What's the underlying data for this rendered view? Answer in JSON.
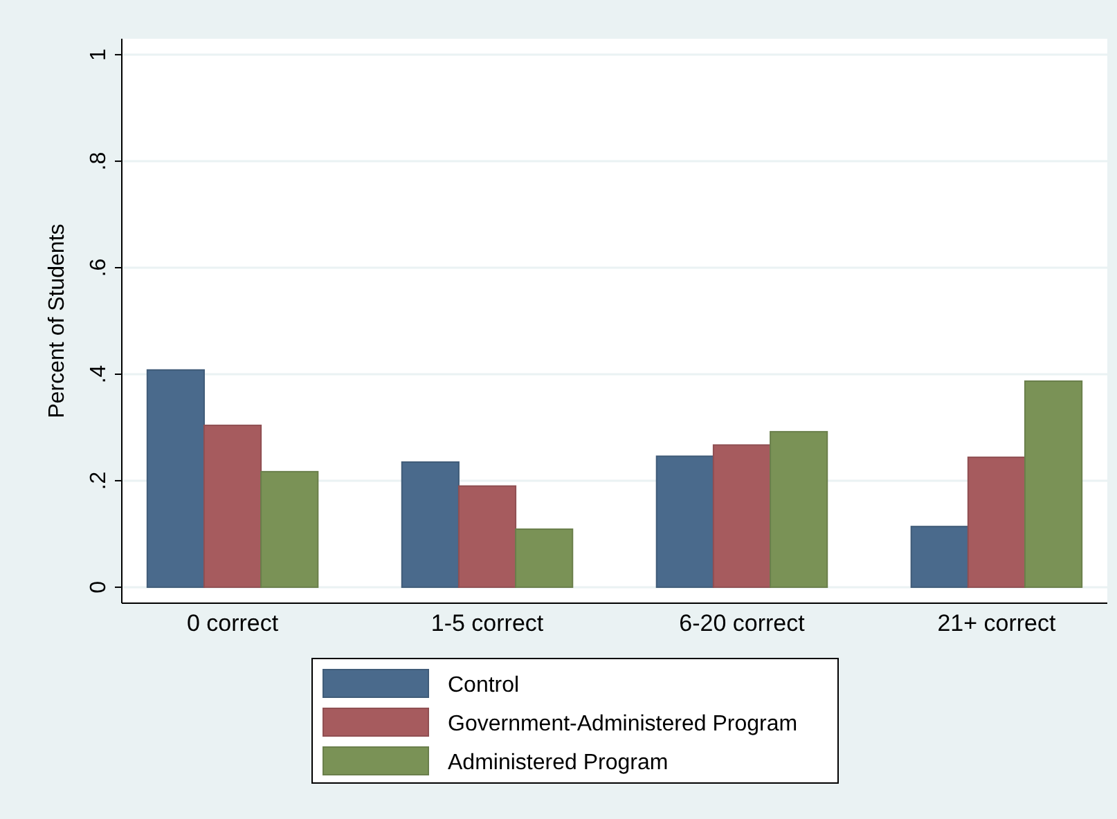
{
  "chart_data": {
    "type": "bar",
    "ylabel": "Percent of Students",
    "categories": [
      "0 correct",
      "1-5 correct",
      "6-20 correct",
      "21+ correct"
    ],
    "series": [
      {
        "name": "Control",
        "color": "#4a6a8c",
        "values": [
          0.408,
          0.235,
          0.246,
          0.114
        ]
      },
      {
        "name": "Government-Administered Program",
        "color": "#a65b5e",
        "values": [
          0.304,
          0.19,
          0.267,
          0.244
        ]
      },
      {
        "name": "Administered Program",
        "color": "#7a9256",
        "values": [
          0.217,
          0.109,
          0.292,
          0.387
        ]
      }
    ],
    "ylim": [
      -0.03,
      1.03
    ],
    "yticks": [
      {
        "value": 0,
        "label": "0"
      },
      {
        "value": 0.2,
        "label": ".2"
      },
      {
        "value": 0.4,
        "label": ".4"
      },
      {
        "value": 0.6,
        "label": ".6"
      },
      {
        "value": 0.8,
        "label": ".8"
      },
      {
        "value": 1,
        "label": "1"
      }
    ],
    "grid": "y",
    "legend": "bottom"
  }
}
